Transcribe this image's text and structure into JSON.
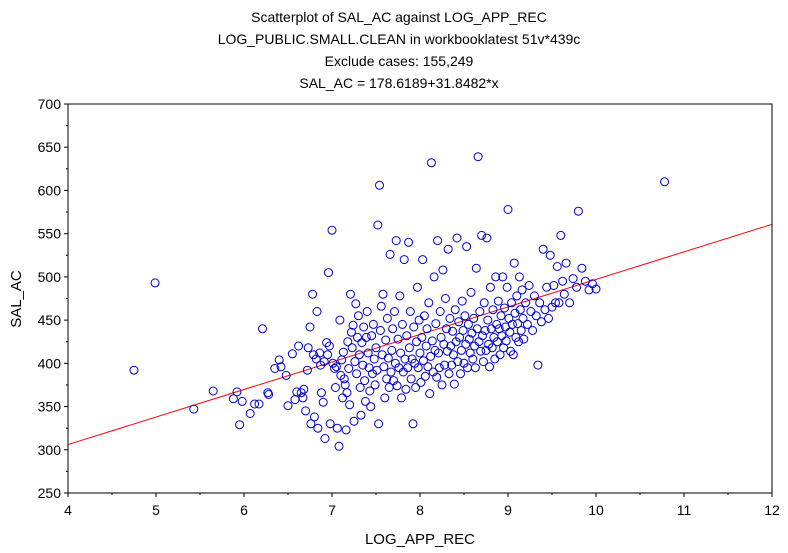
{
  "chart_data": {
    "type": "scatter",
    "title_lines": [
      "Scatterplot of SAL_AC against LOG_APP_REC",
      "LOG_PUBLIC.SMALL.CLEAN in workbooklatest 51v*439c",
      "Exclude cases: 155,249",
      "SAL_AC = 178.6189+31.8482*x"
    ],
    "xlabel": "LOG_APP_REC",
    "ylabel": "SAL_AC",
    "xlim": [
      4,
      12
    ],
    "ylim": [
      250,
      700
    ],
    "xticks": [
      4,
      5,
      6,
      7,
      8,
      9,
      10,
      11,
      12
    ],
    "yticks": [
      250,
      300,
      350,
      400,
      450,
      500,
      550,
      600,
      650,
      700
    ],
    "grid": false,
    "regression": {
      "intercept": 178.6189,
      "slope": 31.8482
    },
    "colors": {
      "points": "#0000cc",
      "fit_line": "#ff0000",
      "axis": "#000000"
    },
    "points": [
      [
        4.75,
        392
      ],
      [
        4.99,
        493
      ],
      [
        5.43,
        347
      ],
      [
        5.65,
        368
      ],
      [
        5.88,
        359
      ],
      [
        5.92,
        367
      ],
      [
        5.95,
        329
      ],
      [
        5.98,
        356
      ],
      [
        6.07,
        342
      ],
      [
        6.12,
        353
      ],
      [
        6.17,
        353
      ],
      [
        6.21,
        440
      ],
      [
        6.27,
        366
      ],
      [
        6.28,
        364
      ],
      [
        6.35,
        394
      ],
      [
        6.4,
        404
      ],
      [
        6.42,
        396
      ],
      [
        6.48,
        386
      ],
      [
        6.5,
        351
      ],
      [
        6.55,
        411
      ],
      [
        6.58,
        358
      ],
      [
        6.6,
        367
      ],
      [
        6.62,
        420
      ],
      [
        6.65,
        366
      ],
      [
        6.67,
        360
      ],
      [
        6.68,
        370
      ],
      [
        6.7,
        345
      ],
      [
        6.72,
        392
      ],
      [
        6.73,
        418
      ],
      [
        6.75,
        442
      ],
      [
        6.76,
        330
      ],
      [
        6.78,
        480
      ],
      [
        6.79,
        410
      ],
      [
        6.8,
        338
      ],
      [
        6.82,
        405
      ],
      [
        6.83,
        460
      ],
      [
        6.84,
        325
      ],
      [
        6.86,
        412
      ],
      [
        6.87,
        398
      ],
      [
        6.88,
        366
      ],
      [
        6.9,
        355
      ],
      [
        6.91,
        402
      ],
      [
        6.92,
        313
      ],
      [
        6.94,
        424
      ],
      [
        6.95,
        410
      ],
      [
        6.96,
        505
      ],
      [
        6.97,
        420
      ],
      [
        6.98,
        330
      ],
      [
        7.0,
        554
      ],
      [
        7.01,
        400
      ],
      [
        7.03,
        394
      ],
      [
        7.04,
        372
      ],
      [
        7.05,
        396
      ],
      [
        7.06,
        325
      ],
      [
        7.08,
        304
      ],
      [
        7.09,
        450
      ],
      [
        7.1,
        386
      ],
      [
        7.11,
        404
      ],
      [
        7.12,
        360
      ],
      [
        7.13,
        413
      ],
      [
        7.14,
        382
      ],
      [
        7.15,
        375
      ],
      [
        7.16,
        323
      ],
      [
        7.17,
        366
      ],
      [
        7.18,
        425
      ],
      [
        7.19,
        394
      ],
      [
        7.2,
        352
      ],
      [
        7.21,
        480
      ],
      [
        7.22,
        436
      ],
      [
        7.23,
        418
      ],
      [
        7.24,
        444
      ],
      [
        7.25,
        333
      ],
      [
        7.26,
        402
      ],
      [
        7.27,
        469
      ],
      [
        7.28,
        388
      ],
      [
        7.29,
        430
      ],
      [
        7.3,
        455
      ],
      [
        7.31,
        410
      ],
      [
        7.32,
        372
      ],
      [
        7.33,
        340
      ],
      [
        7.34,
        424
      ],
      [
        7.35,
        398
      ],
      [
        7.36,
        442
      ],
      [
        7.37,
        380
      ],
      [
        7.38,
        356
      ],
      [
        7.39,
        430
      ],
      [
        7.4,
        460
      ],
      [
        7.41,
        412
      ],
      [
        7.42,
        395
      ],
      [
        7.43,
        368
      ],
      [
        7.44,
        350
      ],
      [
        7.45,
        432
      ],
      [
        7.46,
        388
      ],
      [
        7.47,
        445
      ],
      [
        7.48,
        405
      ],
      [
        7.49,
        375
      ],
      [
        7.5,
        418
      ],
      [
        7.51,
        392
      ],
      [
        7.52,
        560
      ],
      [
        7.53,
        330
      ],
      [
        7.54,
        606
      ],
      [
        7.55,
        438
      ],
      [
        7.56,
        466
      ],
      [
        7.57,
        410
      ],
      [
        7.58,
        480
      ],
      [
        7.59,
        396
      ],
      [
        7.6,
        360
      ],
      [
        7.61,
        427
      ],
      [
        7.62,
        382
      ],
      [
        7.63,
        452
      ],
      [
        7.64,
        406
      ],
      [
        7.65,
        372
      ],
      [
        7.66,
        526
      ],
      [
        7.67,
        390
      ],
      [
        7.68,
        415
      ],
      [
        7.69,
        440
      ],
      [
        7.7,
        380
      ],
      [
        7.71,
        460
      ],
      [
        7.72,
        400
      ],
      [
        7.73,
        542
      ],
      [
        7.74,
        374
      ],
      [
        7.75,
        428
      ],
      [
        7.76,
        395
      ],
      [
        7.77,
        478
      ],
      [
        7.78,
        412
      ],
      [
        7.79,
        360
      ],
      [
        7.8,
        445
      ],
      [
        7.81,
        390
      ],
      [
        7.82,
        520
      ],
      [
        7.83,
        405
      ],
      [
        7.84,
        370
      ],
      [
        7.85,
        432
      ],
      [
        7.86,
        395
      ],
      [
        7.87,
        540
      ],
      [
        7.88,
        418
      ],
      [
        7.89,
        460
      ],
      [
        7.9,
        382
      ],
      [
        7.91,
        405
      ],
      [
        7.92,
        330
      ],
      [
        7.93,
        442
      ],
      [
        7.94,
        400
      ],
      [
        7.95,
        372
      ],
      [
        7.96,
        425
      ],
      [
        7.97,
        488
      ],
      [
        7.98,
        395
      ],
      [
        7.99,
        450
      ],
      [
        8.0,
        412
      ],
      [
        8.01,
        378
      ],
      [
        8.02,
        430
      ],
      [
        8.03,
        520
      ],
      [
        8.04,
        403
      ],
      [
        8.05,
        455
      ],
      [
        8.06,
        385
      ],
      [
        8.07,
        420
      ],
      [
        8.08,
        440
      ],
      [
        8.09,
        396
      ],
      [
        8.1,
        470
      ],
      [
        8.11,
        365
      ],
      [
        8.12,
        408
      ],
      [
        8.13,
        632
      ],
      [
        8.14,
        426
      ],
      [
        8.15,
        390
      ],
      [
        8.16,
        500
      ],
      [
        8.17,
        415
      ],
      [
        8.18,
        446
      ],
      [
        8.19,
        384
      ],
      [
        8.2,
        542
      ],
      [
        8.21,
        412
      ],
      [
        8.22,
        395
      ],
      [
        8.23,
        460
      ],
      [
        8.24,
        430
      ],
      [
        8.25,
        375
      ],
      [
        8.26,
        508
      ],
      [
        8.27,
        422
      ],
      [
        8.28,
        398
      ],
      [
        8.29,
        475
      ],
      [
        8.3,
        440
      ],
      [
        8.31,
        414
      ],
      [
        8.32,
        532
      ],
      [
        8.33,
        388
      ],
      [
        8.34,
        452
      ],
      [
        8.35,
        420
      ],
      [
        8.36,
        398
      ],
      [
        8.37,
        437
      ],
      [
        8.38,
        410
      ],
      [
        8.39,
        376
      ],
      [
        8.4,
        462
      ],
      [
        8.41,
        425
      ],
      [
        8.42,
        545
      ],
      [
        8.43,
        402
      ],
      [
        8.44,
        448
      ],
      [
        8.45,
        430
      ],
      [
        8.46,
        388
      ],
      [
        8.47,
        415
      ],
      [
        8.48,
        472
      ],
      [
        8.49,
        438
      ],
      [
        8.5,
        400
      ],
      [
        8.51,
        455
      ],
      [
        8.52,
        422
      ],
      [
        8.53,
        535
      ],
      [
        8.54,
        395
      ],
      [
        8.55,
        445
      ],
      [
        8.56,
        428
      ],
      [
        8.57,
        412
      ],
      [
        8.58,
        482
      ],
      [
        8.59,
        435
      ],
      [
        8.6,
        405
      ],
      [
        8.61,
        452
      ],
      [
        8.62,
        420
      ],
      [
        8.63,
        395
      ],
      [
        8.64,
        510
      ],
      [
        8.65,
        440
      ],
      [
        8.66,
        639
      ],
      [
        8.67,
        425
      ],
      [
        8.68,
        460
      ],
      [
        8.69,
        414
      ],
      [
        8.7,
        548
      ],
      [
        8.71,
        432
      ],
      [
        8.72,
        402
      ],
      [
        8.73,
        470
      ],
      [
        8.74,
        438
      ],
      [
        8.75,
        415
      ],
      [
        8.76,
        545
      ],
      [
        8.77,
        450
      ],
      [
        8.78,
        422
      ],
      [
        8.79,
        396
      ],
      [
        8.8,
        488
      ],
      [
        8.81,
        440
      ],
      [
        8.82,
        418
      ],
      [
        8.83,
        462
      ],
      [
        8.84,
        430
      ],
      [
        8.85,
        405
      ],
      [
        8.86,
        500
      ],
      [
        8.87,
        445
      ],
      [
        8.88,
        425
      ],
      [
        8.89,
        472
      ],
      [
        8.9,
        440
      ],
      [
        8.91,
        410
      ],
      [
        8.92,
        455
      ],
      [
        8.93,
        432
      ],
      [
        8.94,
        500
      ],
      [
        8.95,
        418
      ],
      [
        8.96,
        464
      ],
      [
        8.97,
        442
      ],
      [
        8.98,
        426
      ],
      [
        8.99,
        488
      ],
      [
        9.0,
        578
      ],
      [
        9.01,
        452
      ],
      [
        9.02,
        436
      ],
      [
        9.03,
        414
      ],
      [
        9.04,
        470
      ],
      [
        9.05,
        445
      ],
      [
        9.06,
        410
      ],
      [
        9.07,
        516
      ],
      [
        9.08,
        458
      ],
      [
        9.09,
        430
      ],
      [
        9.1,
        478
      ],
      [
        9.11,
        446
      ],
      [
        9.12,
        425
      ],
      [
        9.13,
        500
      ],
      [
        9.14,
        462
      ],
      [
        9.15,
        438
      ],
      [
        9.16,
        485
      ],
      [
        9.17,
        452
      ],
      [
        9.18,
        428
      ],
      [
        9.2,
        470
      ],
      [
        9.22,
        445
      ],
      [
        9.24,
        490
      ],
      [
        9.26,
        460
      ],
      [
        9.28,
        438
      ],
      [
        9.3,
        478
      ],
      [
        9.32,
        455
      ],
      [
        9.34,
        398
      ],
      [
        9.36,
        470
      ],
      [
        9.38,
        448
      ],
      [
        9.4,
        532
      ],
      [
        9.42,
        462
      ],
      [
        9.44,
        488
      ],
      [
        9.46,
        452
      ],
      [
        9.48,
        525
      ],
      [
        9.5,
        465
      ],
      [
        9.52,
        490
      ],
      [
        9.54,
        470
      ],
      [
        9.56,
        512
      ],
      [
        9.58,
        470
      ],
      [
        9.6,
        548
      ],
      [
        9.62,
        495
      ],
      [
        9.64,
        480
      ],
      [
        9.66,
        516
      ],
      [
        9.7,
        470
      ],
      [
        9.74,
        498
      ],
      [
        9.78,
        488
      ],
      [
        9.8,
        576
      ],
      [
        9.84,
        510
      ],
      [
        9.88,
        495
      ],
      [
        9.92,
        485
      ],
      [
        9.96,
        492
      ],
      [
        10.0,
        486
      ],
      [
        10.78,
        610
      ]
    ]
  }
}
